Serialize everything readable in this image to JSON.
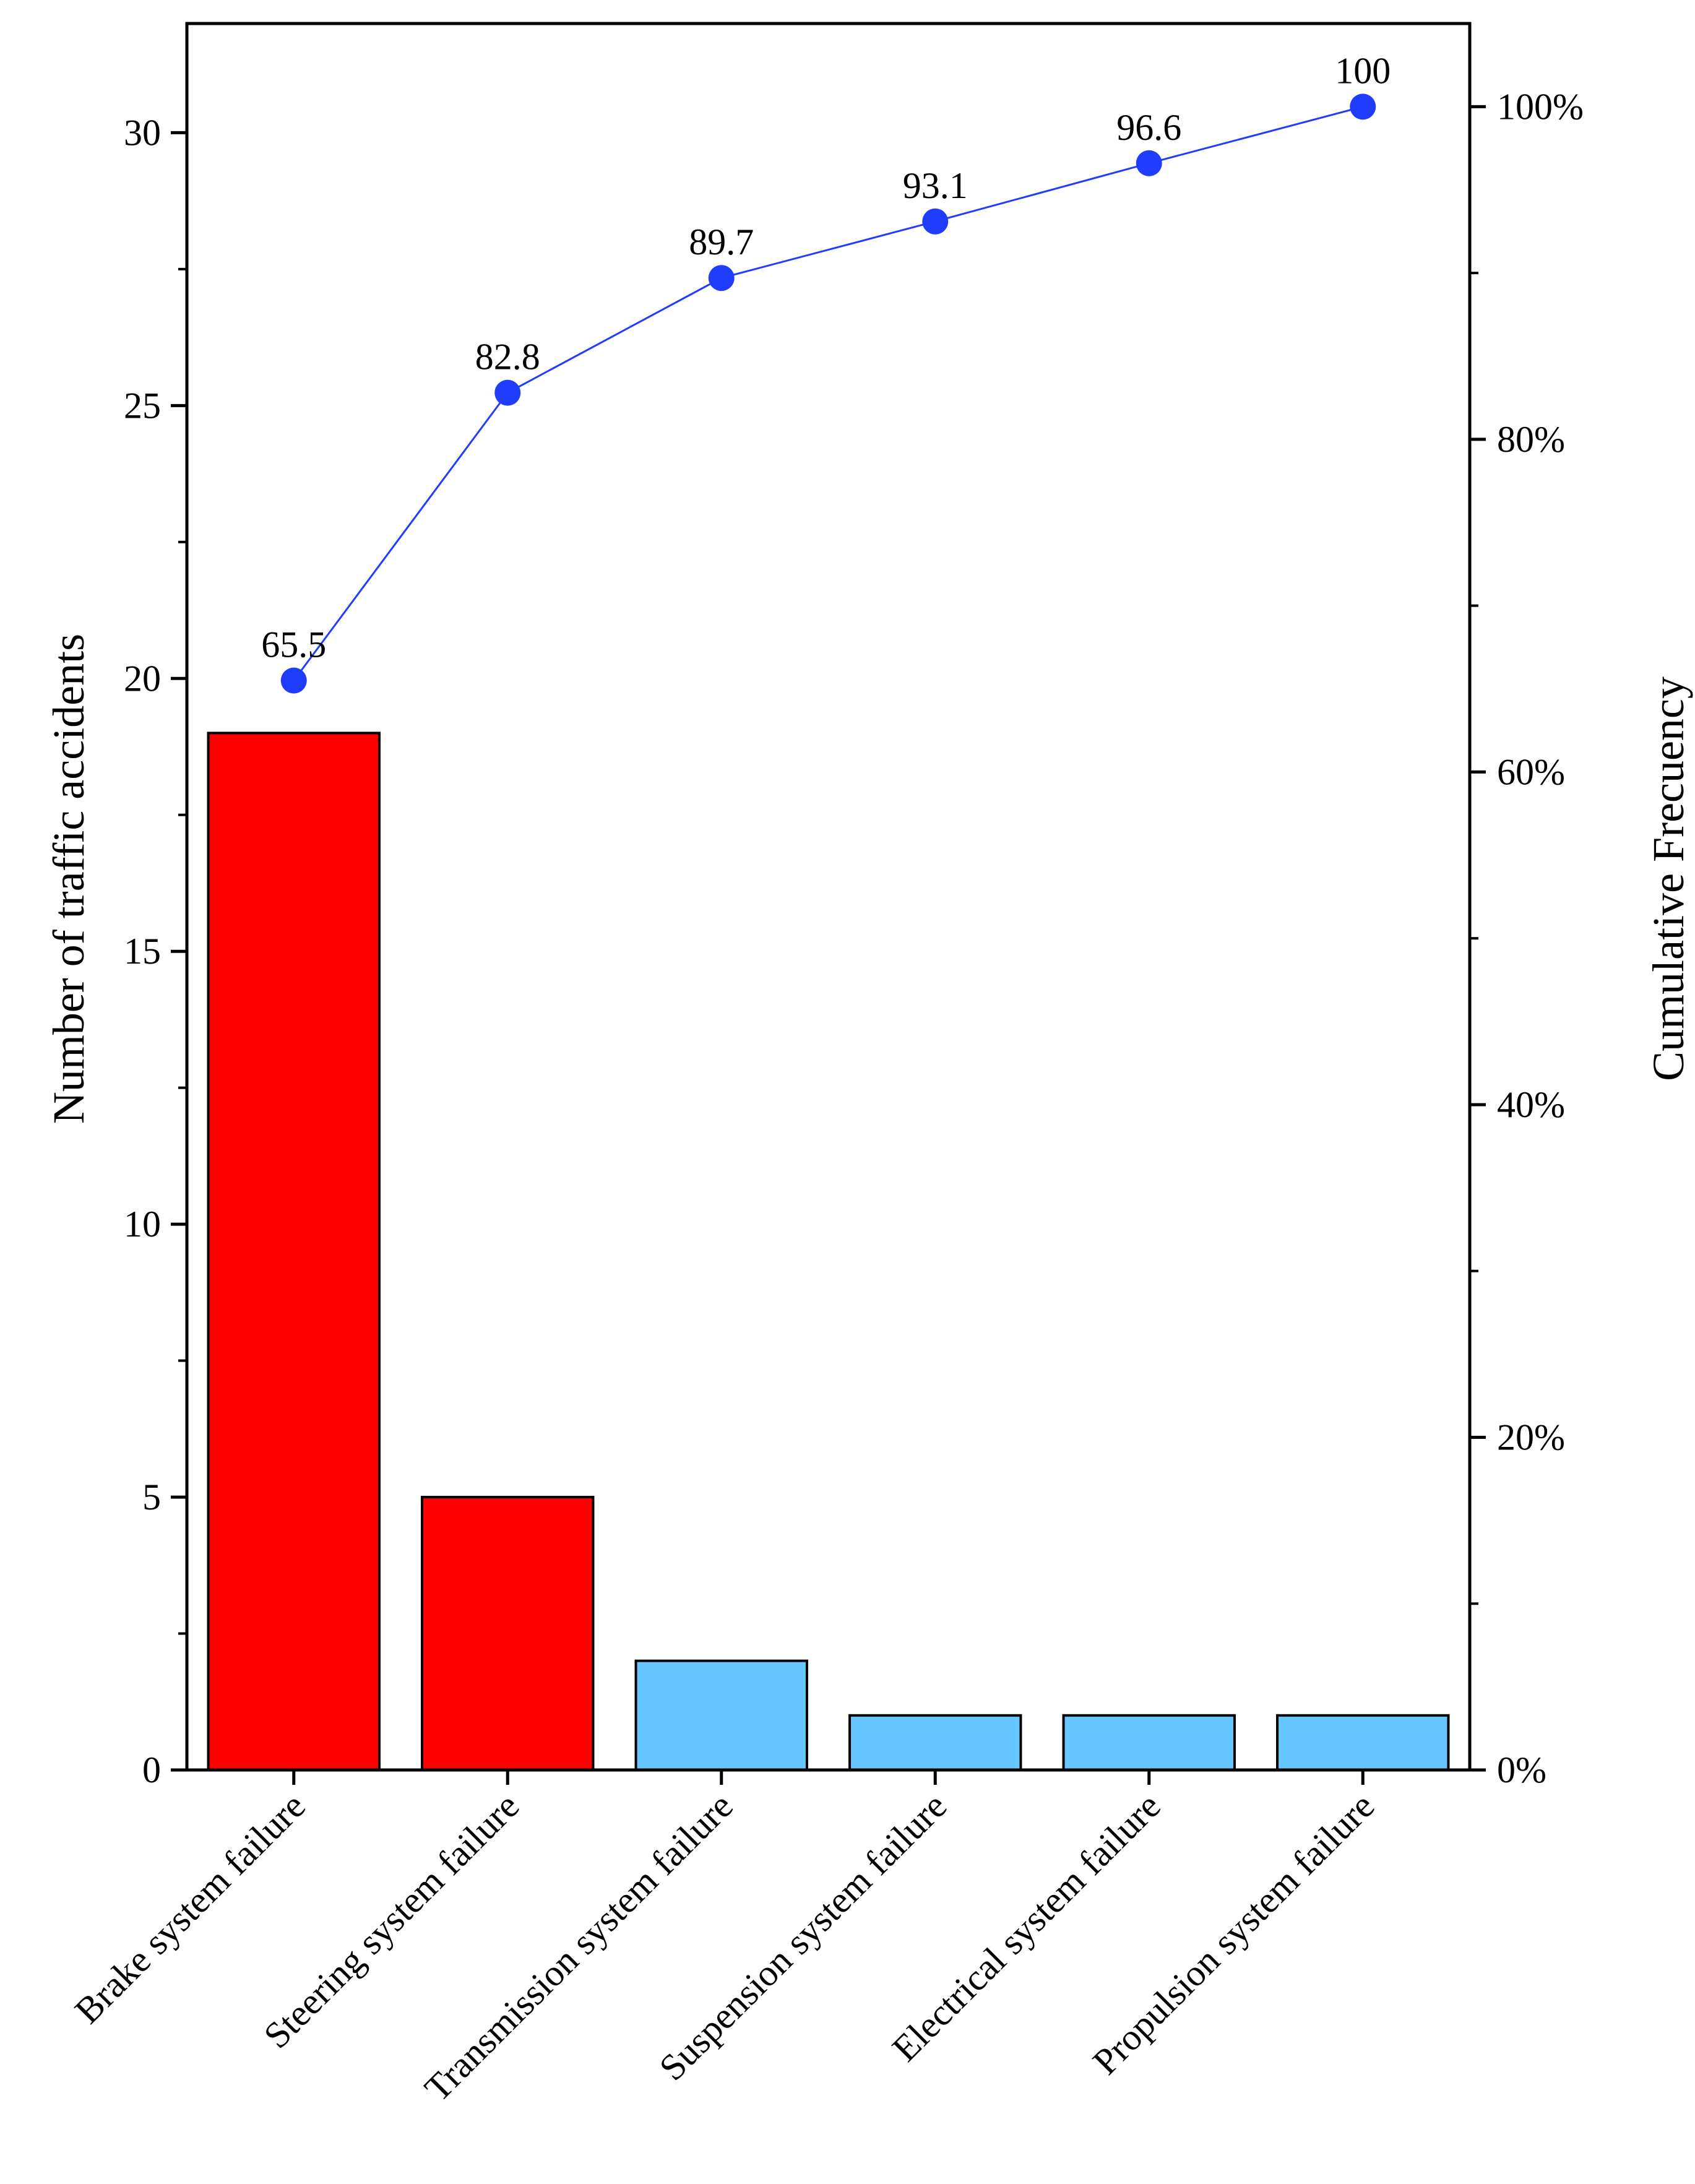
{
  "chart_data": {
    "type": "bar",
    "title": "",
    "categories": [
      "Brake system failure",
      "Steering system failure",
      "Transmission system failure",
      "Suspension system failure",
      "Electrical system failure",
      "Propulsion system failure"
    ],
    "values": [
      19,
      5,
      2,
      1,
      1,
      1
    ],
    "bar_colors": [
      "#ff0000",
      "#ff0000",
      "#66c6ff",
      "#66c6ff",
      "#66c6ff",
      "#66c6ff"
    ],
    "cumulative": {
      "name": "Cumulative Frecuency",
      "type": "line",
      "color": "#1f3cff",
      "values": [
        65.5,
        82.8,
        89.7,
        93.1,
        96.6,
        100
      ],
      "labels": [
        "65.5",
        "82.8",
        "89.7",
        "93.1",
        "96.6",
        "100"
      ]
    },
    "ylabel": "Number of traffic accidents",
    "ylim": [
      0,
      32
    ],
    "yticks": [
      0,
      5,
      10,
      15,
      20,
      25,
      30
    ],
    "ytick_labels": [
      "0",
      "5",
      "10",
      "15",
      "20",
      "25",
      "30"
    ],
    "y2label": "Cumulative Frecuency",
    "y2lim": [
      0,
      105
    ],
    "y2ticks": [
      0,
      20,
      40,
      60,
      80,
      100
    ],
    "y2tick_labels": [
      "0%",
      "20%",
      "40%",
      "60%",
      "80%",
      "100%"
    ],
    "xlabel": "",
    "grid": false
  }
}
